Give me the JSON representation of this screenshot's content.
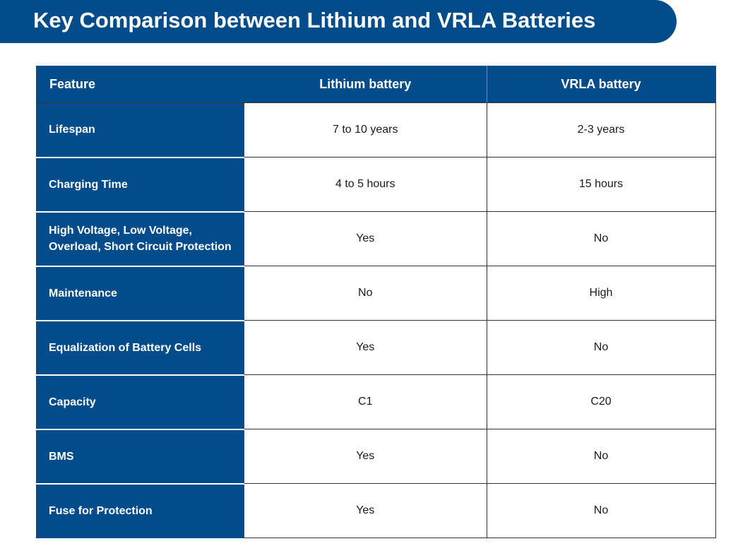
{
  "title": "Key Comparison between Lithium and VRLA Batteries",
  "table": {
    "headers": {
      "feature": "Feature",
      "lithium": "Lithium battery",
      "vrla": "VRLA battery"
    },
    "rows": [
      {
        "feature": "Lifespan",
        "lithium": "7 to 10 years",
        "vrla": "2-3 years"
      },
      {
        "feature": "Charging Time",
        "lithium": "4 to 5 hours",
        "vrla": "15 hours"
      },
      {
        "feature": "High Voltage, Low Voltage, Overload, Short Circuit Protection",
        "lithium": "Yes",
        "vrla": "No"
      },
      {
        "feature": "Maintenance",
        "lithium": "No",
        "vrla": "High"
      },
      {
        "feature": "Equalization of Battery Cells",
        "lithium": "Yes",
        "vrla": "No"
      },
      {
        "feature": "Capacity",
        "lithium": "C1",
        "vrla": "C20"
      },
      {
        "feature": "BMS",
        "lithium": "Yes",
        "vrla": "No"
      },
      {
        "feature": "Fuse for Protection",
        "lithium": "Yes",
        "vrla": "No"
      }
    ]
  },
  "colors": {
    "brand_blue": "#024c8c",
    "text_dark": "#1a1a1a",
    "border": "#333333"
  }
}
